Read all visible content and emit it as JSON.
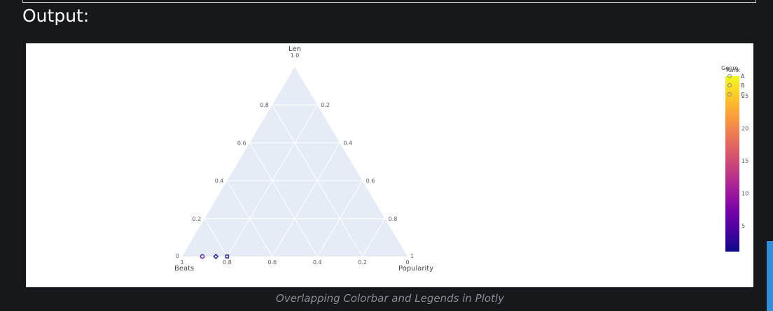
{
  "page": {
    "heading": "Output:",
    "caption": "Overlapping Colorbar and Legends in Plotly"
  },
  "colors": {
    "page_bg": "#17181c",
    "plot_bg": "#e5ecf6",
    "grid": "#ffffff",
    "accent": "#2f8fd8"
  },
  "chart_data": {
    "type": "scatter",
    "subtype": "ternary",
    "axes": {
      "a": {
        "title": "Len",
        "ticks": [
          0.2,
          0.4,
          0.6,
          0.8
        ],
        "corner_label": "1 0"
      },
      "b": {
        "title": "Beats",
        "ticks": [
          0.2,
          0.4,
          0.6,
          0.8
        ],
        "corner_label": "0"
      },
      "c": {
        "title": "Popularity",
        "ticks": [
          0.2,
          0.4,
          0.6,
          0.8
        ],
        "corner_label": "1"
      }
    },
    "bottom_ticks": [
      "1",
      "0.8",
      "0.6",
      "0.4",
      "0.2",
      "0"
    ],
    "grid": true,
    "legend": {
      "title": "Genre",
      "placement": "top-right",
      "entries": [
        "A",
        "B",
        "C"
      ]
    },
    "colorbar": {
      "title": "Rank",
      "placement": "right",
      "range": [
        1,
        28
      ],
      "ticks": [
        5,
        10,
        15,
        20,
        25
      ],
      "colorscale": [
        "#0d0887",
        "#46039f",
        "#7201a8",
        "#9c179e",
        "#bd3786",
        "#d8576b",
        "#ed7953",
        "#fb9f3a",
        "#fdca26",
        "#f0f921"
      ]
    },
    "points": [
      {
        "a": 0.0,
        "b": 0.91,
        "c": 0.09,
        "rank": 3,
        "genre": "A",
        "symbol": "circle"
      },
      {
        "a": 0.0,
        "b": 0.85,
        "c": 0.15,
        "rank": 2,
        "genre": "B",
        "symbol": "diamond"
      },
      {
        "a": 0.0,
        "b": 0.8,
        "c": 0.2,
        "rank": 1,
        "genre": "C",
        "symbol": "square"
      }
    ]
  }
}
